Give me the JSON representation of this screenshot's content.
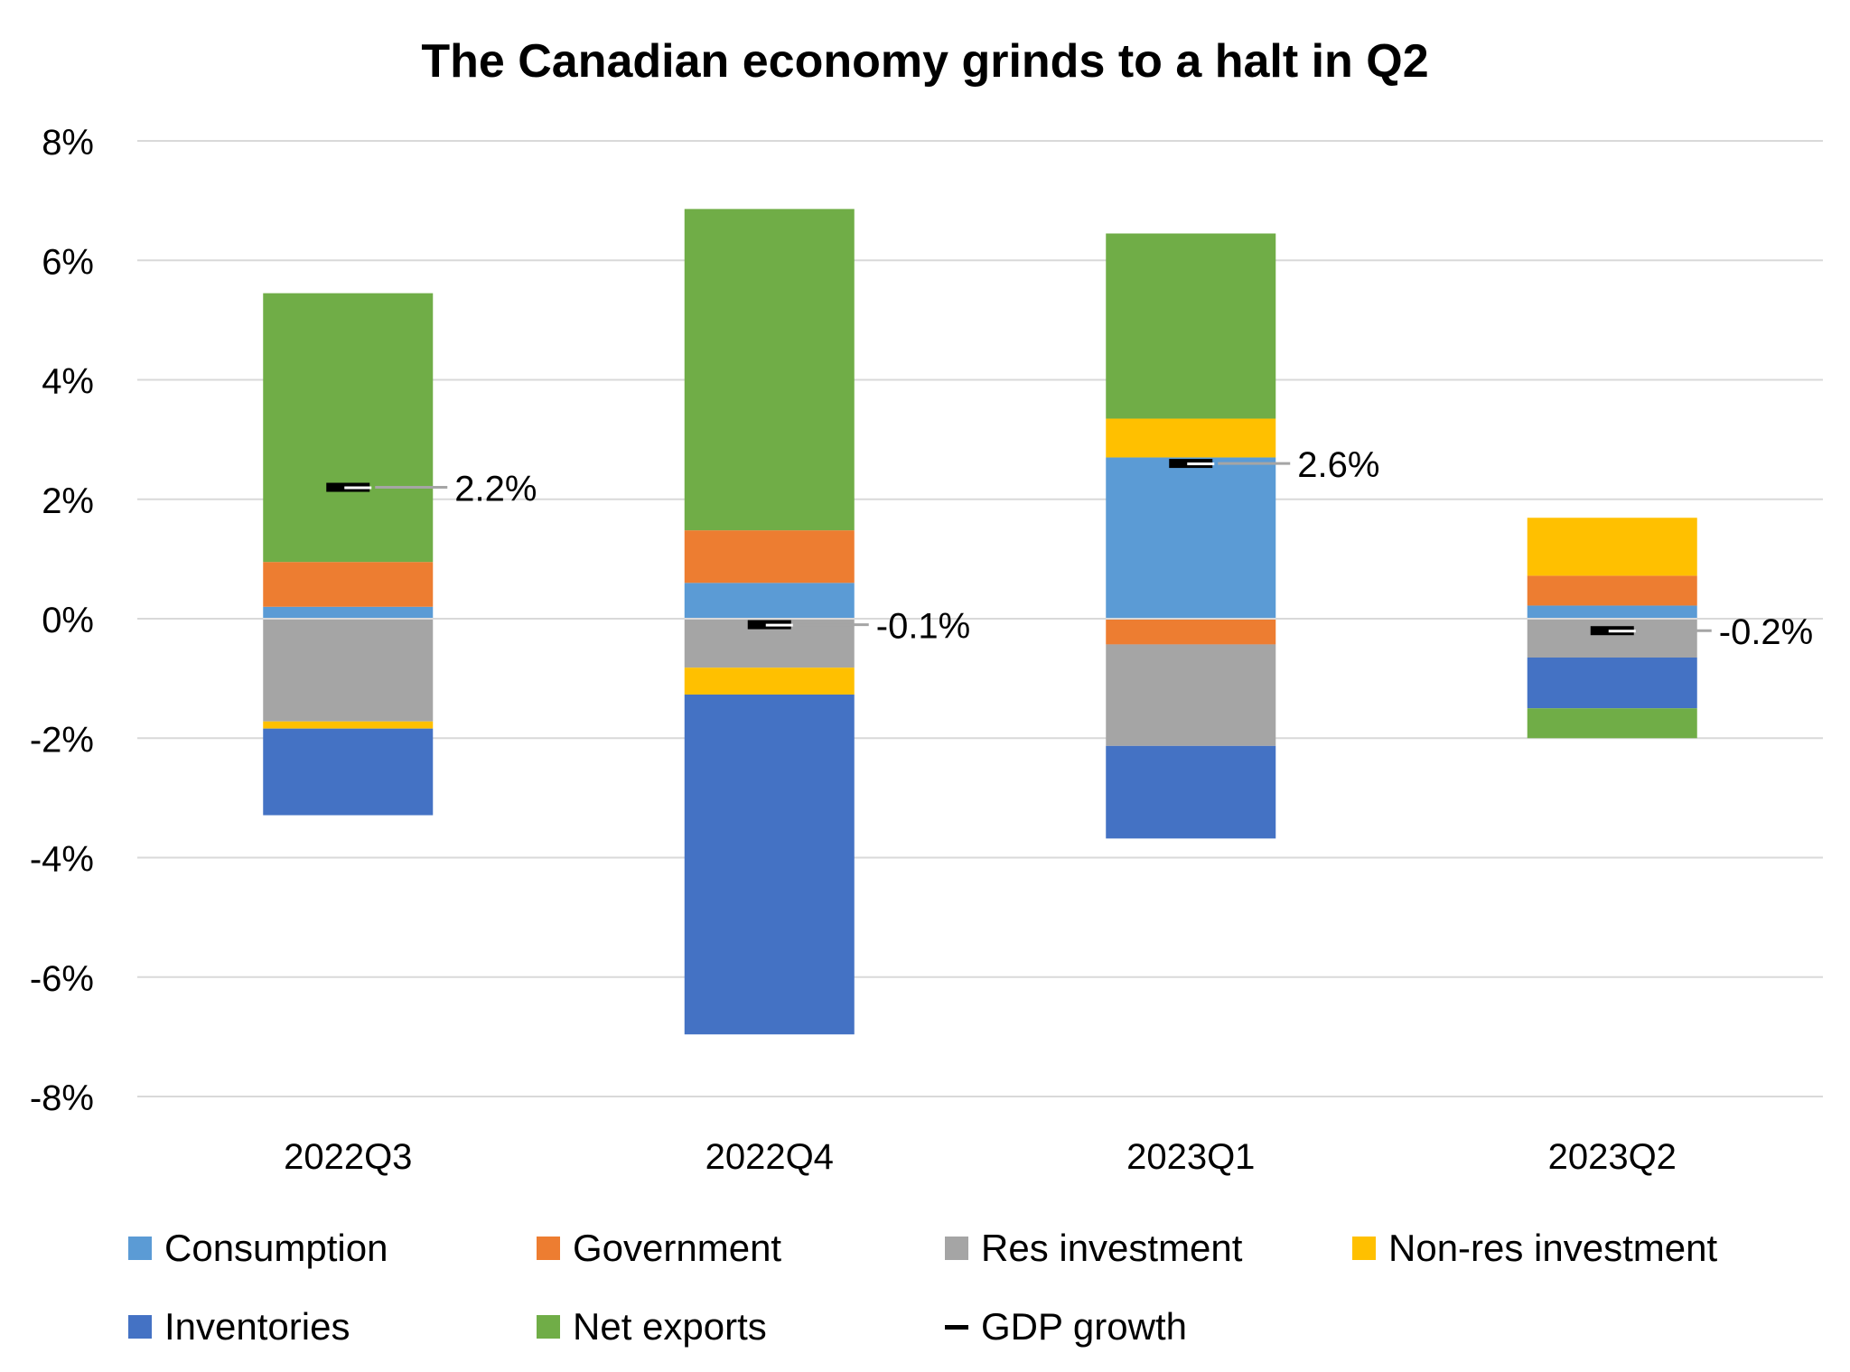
{
  "chart_data": {
    "type": "bar",
    "stacked": true,
    "title": "The Canadian economy grinds to a halt in Q2",
    "categories": [
      "2022Q3",
      "2022Q4",
      "2023Q1",
      "2023Q2"
    ],
    "ylim": [
      -8,
      8
    ],
    "yticks": [
      8,
      6,
      4,
      2,
      0,
      -2,
      -4,
      -6,
      -8
    ],
    "ytick_labels": [
      "8%",
      "6%",
      "4%",
      "2%",
      "0%",
      "-2%",
      "-4%",
      "-6%",
      "-8%"
    ],
    "grid": true,
    "legend_position": "bottom",
    "series": [
      {
        "name": "Consumption",
        "color": "#5b9bd5",
        "values": [
          0.2,
          0.6,
          2.7,
          0.22
        ]
      },
      {
        "name": "Government",
        "color": "#ed7d31",
        "values": [
          0.75,
          0.88,
          -0.43,
          0.5
        ]
      },
      {
        "name": "Res investment",
        "color": "#a5a5a5",
        "values": [
          -1.72,
          -0.82,
          -1.7,
          -0.65
        ]
      },
      {
        "name": "Non-res investment",
        "color": "#ffc000",
        "values": [
          -0.12,
          -0.45,
          0.65,
          0.97
        ]
      },
      {
        "name": "Inventories",
        "color": "#4472c4",
        "values": [
          -1.45,
          -5.69,
          -1.55,
          -0.85
        ]
      },
      {
        "name": "Net exports",
        "color": "#70ad47",
        "values": [
          4.5,
          5.38,
          3.1,
          -0.5
        ]
      }
    ],
    "line_series": {
      "name": "GDP growth",
      "color": "#000000",
      "values": [
        2.2,
        -0.1,
        2.6,
        -0.2
      ]
    },
    "data_labels": [
      "2.2%",
      "-0.1%",
      "2.6%",
      "-0.2%"
    ]
  }
}
